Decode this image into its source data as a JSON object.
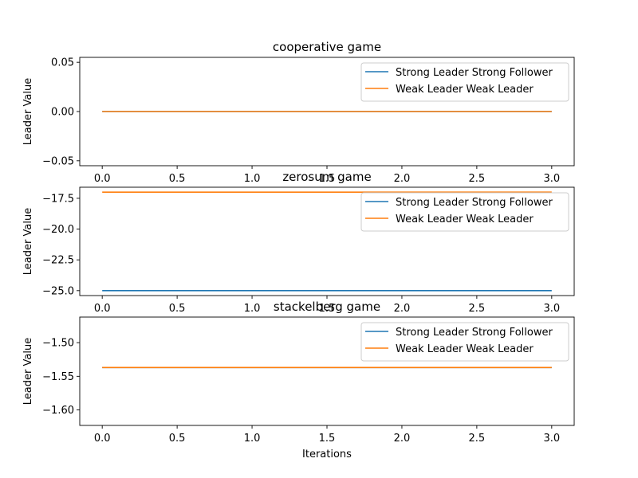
{
  "chart_data": [
    {
      "type": "line",
      "title": "cooperative game",
      "xlabel": "",
      "ylabel": "Leader Value",
      "xlim": [
        -0.15,
        3.15
      ],
      "ylim": [
        -0.055,
        0.055
      ],
      "x_ticks": [
        0.0,
        0.5,
        1.0,
        1.5,
        2.0,
        2.5,
        3.0
      ],
      "x_tick_labels": [
        "0.0",
        "0.5",
        "1.0",
        "1.5",
        "2.0",
        "2.5",
        "3.0"
      ],
      "y_ticks": [
        0.05,
        0.0,
        -0.05
      ],
      "y_tick_labels": [
        "0.05",
        "0.00",
        "−0.05"
      ],
      "x": [
        0,
        1,
        2,
        3
      ],
      "series": [
        {
          "name": "Strong Leader Strong Follower",
          "color": "#1f77b4",
          "values": [
            0,
            0,
            0,
            0
          ]
        },
        {
          "name": "Weak Leader Weak Leader",
          "color": "#ff7f0e",
          "values": [
            0,
            0,
            0,
            0
          ]
        }
      ],
      "legend": "top-right",
      "grid": false
    },
    {
      "type": "line",
      "title": "zerosum game",
      "xlabel": "",
      "ylabel": "Leader Value",
      "xlim": [
        -0.15,
        3.15
      ],
      "ylim": [
        -25.4,
        -16.6
      ],
      "x_ticks": [
        0.0,
        0.5,
        1.0,
        1.5,
        2.0,
        2.5,
        3.0
      ],
      "x_tick_labels": [
        "0.0",
        "0.5",
        "1.0",
        "1.5",
        "2.0",
        "2.5",
        "3.0"
      ],
      "y_ticks": [
        -17.5,
        -20.0,
        -22.5,
        -25.0
      ],
      "y_tick_labels": [
        "−17.5",
        "−20.0",
        "−22.5",
        "−25.0"
      ],
      "x": [
        0,
        1,
        2,
        3
      ],
      "series": [
        {
          "name": "Strong Leader Strong Follower",
          "color": "#1f77b4",
          "values": [
            -25.0,
            -25.0,
            -25.0,
            -25.0
          ]
        },
        {
          "name": "Weak Leader Weak Leader",
          "color": "#ff7f0e",
          "values": [
            -17.0,
            -17.0,
            -17.0,
            -17.0
          ]
        }
      ],
      "legend": "top-right",
      "grid": false
    },
    {
      "type": "line",
      "title": "stackelberg game",
      "xlabel": "Iterations",
      "ylabel": "Leader Value",
      "xlim": [
        -0.15,
        3.15
      ],
      "ylim": [
        -1.623,
        -1.462
      ],
      "x_ticks": [
        0.0,
        0.5,
        1.0,
        1.5,
        2.0,
        2.5,
        3.0
      ],
      "x_tick_labels": [
        "0.0",
        "0.5",
        "1.0",
        "1.5",
        "2.0",
        "2.5",
        "3.0"
      ],
      "y_ticks": [
        -1.5,
        -1.55,
        -1.6
      ],
      "y_tick_labels": [
        "−1.50",
        "−1.55",
        "−1.60"
      ],
      "x": [
        0,
        1,
        2,
        3
      ],
      "series": [
        {
          "name": "Strong Leader Strong Follower",
          "color": "#1f77b4",
          "values": [
            -1.537,
            -1.537,
            -1.537,
            -1.537
          ]
        },
        {
          "name": "Weak Leader Weak Leader",
          "color": "#ff7f0e",
          "values": [
            -1.537,
            -1.537,
            -1.537,
            -1.537
          ]
        }
      ],
      "legend": "top-right",
      "grid": false
    }
  ]
}
